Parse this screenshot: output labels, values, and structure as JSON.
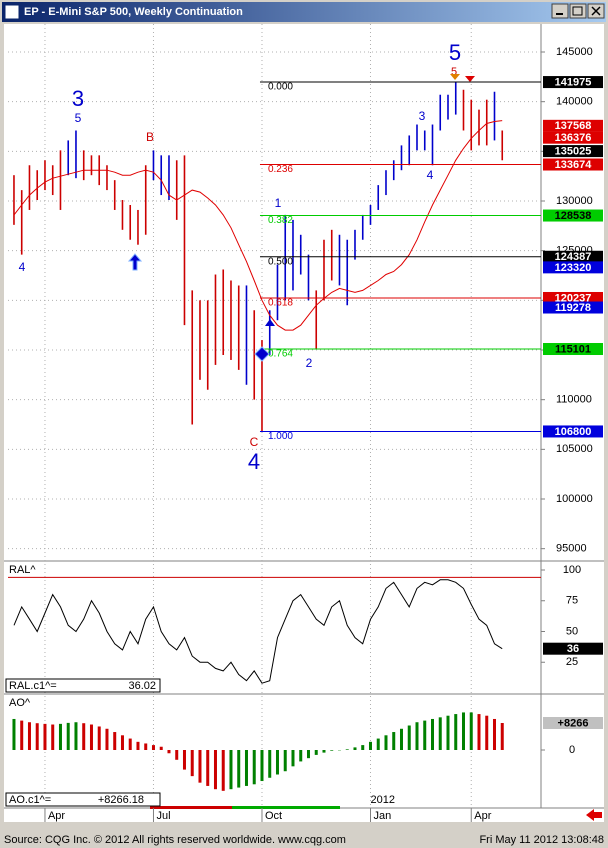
{
  "window": {
    "title": "EP - E-Mini S&P 500, Weekly Continuation",
    "footer_source": "Source: CQG Inc. © 2012 All rights reserved worldwide. www.cqg.com",
    "footer_time": "Fri May 11 2012 13:08:48"
  },
  "chart_data": [
    {
      "type": "range_bar",
      "high": [
        132600,
        131100,
        133600,
        133100,
        134100,
        133600,
        135100,
        136100,
        137100,
        135100,
        134600,
        134600,
        133600,
        132100,
        130100,
        129600,
        129100,
        133600,
        135100,
        134600,
        134600,
        134100,
        134600,
        121000,
        120000,
        120000,
        122600,
        123100,
        122000,
        121500,
        121500,
        119000,
        116000,
        119000,
        123600,
        128600,
        128100,
        126600,
        124600,
        121000,
        126100,
        127100,
        126600,
        126100,
        127100,
        128600,
        129600,
        131600,
        133100,
        134100,
        135600,
        136600,
        137700,
        137100,
        137700,
        140700,
        140700,
        141975,
        141200,
        140200,
        139200,
        140200,
        141000,
        137100
      ],
      "low": [
        127600,
        124600,
        129100,
        130100,
        131100,
        130600,
        129100,
        132600,
        132300,
        132100,
        132600,
        131600,
        131100,
        129100,
        127100,
        126100,
        125600,
        126600,
        132100,
        130600,
        130100,
        128100,
        117500,
        107500,
        112000,
        111000,
        113500,
        114500,
        114000,
        113000,
        111500,
        110000,
        106800,
        114500,
        118000,
        120000,
        121000,
        122600,
        120000,
        115100,
        120000,
        122000,
        121500,
        119500,
        124100,
        126100,
        127600,
        129100,
        130600,
        132100,
        133100,
        133600,
        135100,
        135100,
        133600,
        137100,
        138200,
        138700,
        137100,
        135100,
        135600,
        135600,
        136100,
        134100
      ],
      "bar_colors": [
        "#cc0000",
        "#cc0000",
        "#cc0000",
        "#cc0000",
        "#cc0000",
        "#cc0000",
        "#cc0000",
        "#0000cc",
        "#0000cc",
        "#cc0000",
        "#cc0000",
        "#cc0000",
        "#cc0000",
        "#cc0000",
        "#cc0000",
        "#cc0000",
        "#cc0000",
        "#cc0000",
        "#0000cc",
        "#0000cc",
        "#0000cc",
        "#cc0000",
        "#cc0000",
        "#cc0000",
        "#cc0000",
        "#cc0000",
        "#cc0000",
        "#cc0000",
        "#cc0000",
        "#cc0000",
        "#0000cc",
        "#cc0000",
        "#cc0000",
        "#0000cc",
        "#0000cc",
        "#0000cc",
        "#0000cc",
        "#0000cc",
        "#0000cc",
        "#cc0000",
        "#cc0000",
        "#cc0000",
        "#0000cc",
        "#0000cc",
        "#0000cc",
        "#0000cc",
        "#0000cc",
        "#0000cc",
        "#0000cc",
        "#0000cc",
        "#0000cc",
        "#0000cc",
        "#0000cc",
        "#0000cc",
        "#0000cc",
        "#0000cc",
        "#0000cc",
        "#0000cc",
        "#cc0000",
        "#cc0000",
        "#cc0000",
        "#cc0000",
        "#0000cc",
        "#cc0000"
      ],
      "average": {
        "color": "#e00000",
        "values": [
          128600,
          129600,
          130600,
          131300,
          131900,
          132300,
          132500,
          132700,
          132900,
          133100,
          133100,
          133100,
          133100,
          132900,
          132600,
          132600,
          132900,
          133100,
          132900,
          132100,
          130600,
          130100,
          130600,
          131100,
          130900,
          130300,
          129600,
          128600,
          127300,
          125600,
          123900,
          122000,
          120000,
          118500,
          117500,
          117000,
          117000,
          117500,
          118500,
          119500,
          120200,
          120800,
          121200,
          121000,
          120800,
          121000,
          121500,
          122000,
          122600,
          122900,
          123600,
          124600,
          126100,
          127900,
          129600,
          131100,
          132600,
          134100,
          135300,
          136300,
          137100,
          137800,
          138000,
          138100
        ]
      },
      "xlim": [
        -0.77,
        68
      ],
      "xticks": [
        {
          "value": 4,
          "label": "Apr"
        },
        {
          "value": 18,
          "label": "Jul"
        },
        {
          "value": 32,
          "label": "Oct"
        },
        {
          "value": 46,
          "label": "Jan"
        },
        {
          "value": 59,
          "label": "Apr"
        }
      ],
      "ylim": [
        93860,
        147820
      ],
      "yticks": [
        95000,
        100000,
        105000,
        110000,
        115000,
        120000,
        125000,
        130000,
        135000,
        140000,
        145000
      ],
      "grid": true,
      "fib_levels": [
        {
          "label": "0.000",
          "value": 141975,
          "color": "#000000"
        },
        {
          "label": "0.236",
          "value": 133674,
          "color": "#dd0000"
        },
        {
          "label": "0.382",
          "value": 128538,
          "color": "#00cc00"
        },
        {
          "label": "0.500",
          "value": 124387,
          "color": "#000000"
        },
        {
          "label": "0.618",
          "value": 120237,
          "color": "#dd0000"
        },
        {
          "label": "0.764",
          "value": 115101,
          "color": "#00cc00"
        },
        {
          "label": "1.000",
          "value": 106800,
          "color": "#0000dd"
        }
      ],
      "price_tags": [
        {
          "value": 137568,
          "color": "#dd0000"
        },
        {
          "value": 136376,
          "color": "#dd0000"
        },
        {
          "value": 135025,
          "color": "#000000"
        },
        {
          "value": 123320,
          "color": "#0000dd"
        },
        {
          "value": 119278,
          "color": "#0000dd"
        }
      ],
      "wave_labels": [
        "3",
        "5",
        "B",
        "4",
        "C",
        "4",
        "1",
        "2",
        "3",
        "4",
        "5",
        "5"
      ]
    },
    {
      "type": "line",
      "title": "RAL^",
      "values": [
        55,
        70,
        60,
        50,
        65,
        80,
        70,
        55,
        50,
        60,
        75,
        65,
        50,
        40,
        35,
        50,
        40,
        60,
        70,
        50,
        40,
        35,
        45,
        30,
        25,
        25,
        20,
        18,
        25,
        15,
        10,
        18,
        8,
        10,
        45,
        60,
        75,
        80,
        70,
        60,
        55,
        70,
        75,
        55,
        45,
        40,
        60,
        70,
        85,
        90,
        80,
        70,
        85,
        90,
        88,
        92,
        92,
        90,
        85,
        72,
        60,
        55,
        40,
        36.02
      ],
      "color": "#000000",
      "ylim": [
        0,
        106.5
      ],
      "yticks": [
        25,
        50,
        75,
        100
      ],
      "ref_line": {
        "value": 94,
        "color": "#cc0000"
      },
      "current_name": "RAL.c1^=",
      "current_label": "36.02",
      "tag_label": "36"
    },
    {
      "type": "histogram",
      "title": "AO^",
      "values": [
        9500,
        9000,
        8500,
        8200,
        8000,
        7800,
        8000,
        8300,
        8500,
        8200,
        7800,
        7200,
        6500,
        5500,
        4500,
        3500,
        2500,
        2000,
        1500,
        1000,
        -1000,
        -3000,
        -6000,
        -8000,
        -10000,
        -11000,
        -12000,
        -12500,
        -12000,
        -11500,
        -11000,
        -10500,
        -9500,
        -8500,
        -7500,
        -6500,
        -5000,
        -3500,
        -2500,
        -1500,
        -800,
        -200,
        -100,
        200,
        800,
        1500,
        2500,
        3500,
        4500,
        5500,
        6500,
        7500,
        8500,
        9000,
        9500,
        10000,
        10500,
        11000,
        11500,
        11500,
        11000,
        10500,
        9500,
        8266.18
      ],
      "up_color": "#008000",
      "down_color": "#cc0000",
      "ylim": [
        -17144,
        16838
      ],
      "yticks": [
        0
      ],
      "current_name": "AO.c1^=",
      "current_label": "+8266.18",
      "tag_label": "+8266",
      "year_label": {
        "value": 46,
        "label": "2012"
      }
    }
  ]
}
